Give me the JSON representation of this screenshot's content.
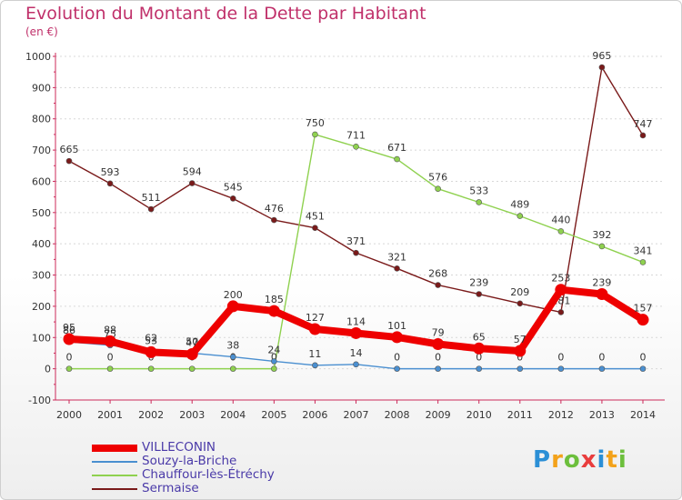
{
  "chart_data": {
    "type": "line",
    "title": "Evolution du Montant de la Dette par Habitant",
    "ylabel": "(en €)",
    "xlabel": "",
    "ylim": [
      -100,
      1000
    ],
    "yticks": [
      -100,
      0,
      100,
      200,
      300,
      400,
      500,
      600,
      700,
      800,
      900,
      1000
    ],
    "categories": [
      "2000",
      "2001",
      "2002",
      "2003",
      "2004",
      "2005",
      "2006",
      "2007",
      "2008",
      "2009",
      "2010",
      "2011",
      "2012",
      "2013",
      "2014"
    ],
    "series": [
      {
        "name": "Sermaise",
        "color": "#7a1a1a",
        "values": [
          665,
          593,
          511,
          594,
          545,
          476,
          451,
          371,
          321,
          268,
          239,
          209,
          181,
          965,
          747
        ],
        "labels": [
          "665",
          "593",
          "511",
          "594",
          "545",
          "476",
          "451",
          "371",
          "321",
          "268",
          "239",
          "209",
          "181",
          "965",
          "747"
        ]
      },
      {
        "name": "Chauffour-lès-Étréchy",
        "color": "#8fd14f",
        "values": [
          0,
          0,
          0,
          0,
          0,
          0,
          750,
          711,
          671,
          576,
          533,
          489,
          440,
          392,
          341
        ],
        "labels": [
          "0",
          "0",
          "0",
          "0",
          "0",
          "0",
          "750",
          "711",
          "671",
          "576",
          "533",
          "489",
          "440",
          "392",
          "341"
        ]
      },
      {
        "name": "Souzy-la-Briche",
        "color": "#4a8fd0",
        "values": [
          86,
          75,
          62,
          50,
          38,
          24,
          11,
          14,
          0,
          0,
          0,
          0,
          0,
          0,
          0
        ],
        "labels": [
          "86",
          "75",
          "62",
          "50",
          "38",
          "24",
          "11",
          "14",
          "0",
          "0",
          "0",
          "0",
          "0",
          "0",
          "0"
        ]
      },
      {
        "name": "VILLECONIN",
        "color": "#ee0000",
        "values": [
          95,
          88,
          53,
          47,
          200,
          185,
          127,
          114,
          101,
          79,
          65,
          57,
          253,
          239,
          157
        ],
        "labels": [
          "95",
          "88",
          "53",
          "47",
          "200",
          "185",
          "127",
          "114",
          "101",
          "79",
          "65",
          "57",
          "253",
          "239",
          "157"
        ]
      }
    ],
    "legend": [
      "VILLECONIN",
      "Souzy-la-Briche",
      "Chauffour-lès-Étréchy",
      "Sermaise"
    ],
    "legend_placement": "bottom-left"
  },
  "logo": {
    "letters": [
      "P",
      "r",
      "o",
      "x",
      "i",
      "t",
      "i"
    ],
    "colors": [
      "#2b8fd6",
      "#f3a21b",
      "#6cbf3c",
      "#e93d3d",
      "#2b8fd6",
      "#f3a21b",
      "#6cbf3c"
    ]
  }
}
